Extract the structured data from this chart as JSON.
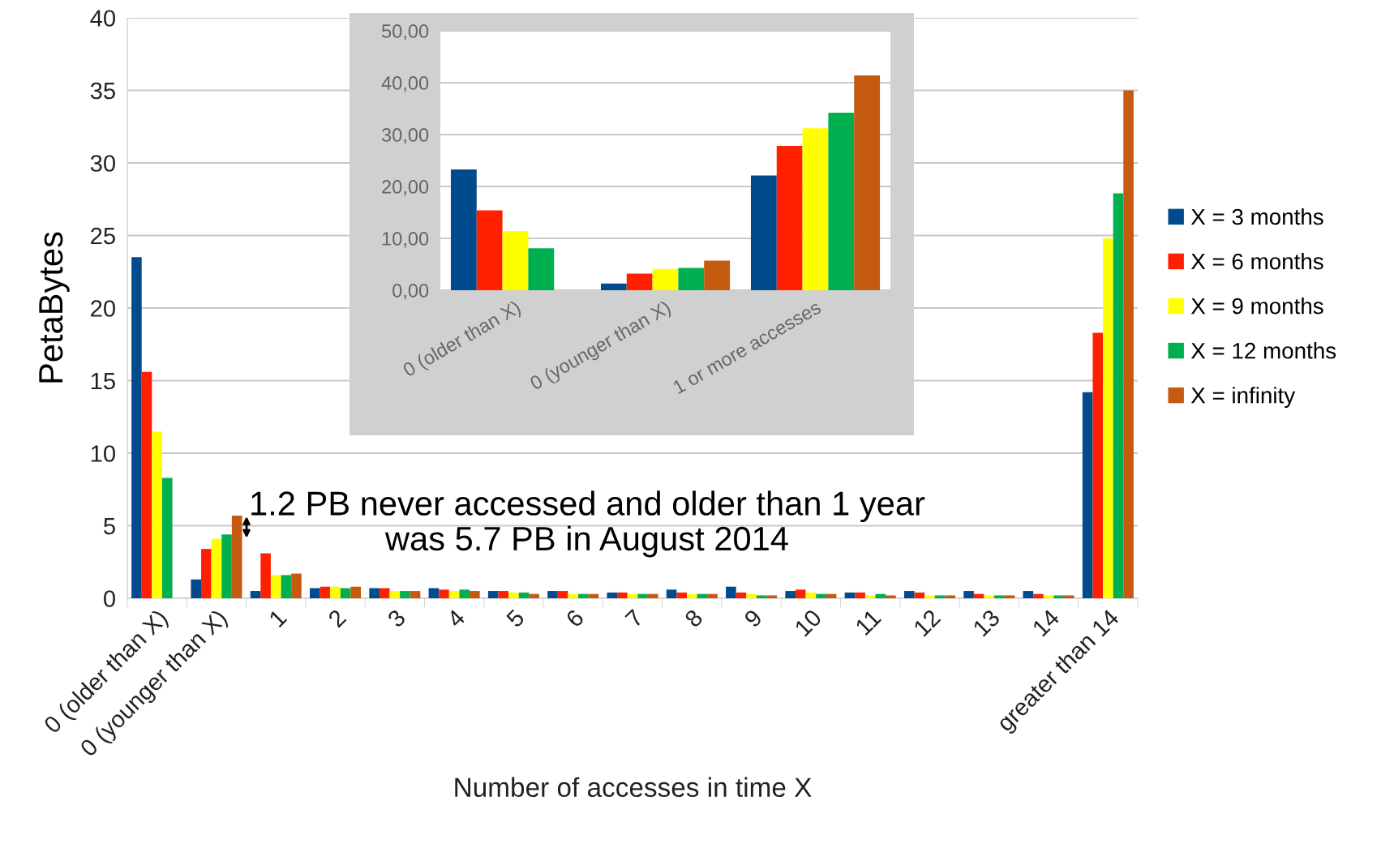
{
  "chart_data": [
    {
      "type": "bar",
      "xlabel": "Number of accesses in time X",
      "ylabel": "PetaBytes",
      "categories": [
        "0 (older than X)",
        "0 (younger than X)",
        "1",
        "2",
        "3",
        "4",
        "5",
        "6",
        "7",
        "8",
        "9",
        "10",
        "11",
        "12",
        "13",
        "14",
        "greater than 14"
      ],
      "series": [
        {
          "name": "X = 3 months",
          "color": "#004b8d",
          "values": [
            23.5,
            1.3,
            0.5,
            0.7,
            0.7,
            0.7,
            0.5,
            0.5,
            0.4,
            0.6,
            0.8,
            0.5,
            0.4,
            0.5,
            0.5,
            0.5,
            14.2
          ]
        },
        {
          "name": "X = 6 months",
          "color": "#ff2000",
          "values": [
            15.6,
            3.4,
            3.1,
            0.8,
            0.7,
            0.6,
            0.5,
            0.5,
            0.4,
            0.4,
            0.4,
            0.6,
            0.4,
            0.4,
            0.3,
            0.3,
            18.3
          ]
        },
        {
          "name": "X = 9 months",
          "color": "#ffff00",
          "values": [
            11.5,
            4.1,
            1.6,
            0.8,
            0.5,
            0.5,
            0.4,
            0.3,
            0.3,
            0.3,
            0.3,
            0.4,
            0.2,
            0.2,
            0.2,
            0.2,
            24.8
          ]
        },
        {
          "name": "X = 12 months",
          "color": "#00b050",
          "values": [
            8.3,
            4.4,
            1.6,
            0.7,
            0.5,
            0.6,
            0.4,
            0.3,
            0.3,
            0.3,
            0.2,
            0.3,
            0.3,
            0.2,
            0.2,
            0.2,
            27.9
          ]
        },
        {
          "name": "X = infinity",
          "color": "#c55a11",
          "values": [
            null,
            5.7,
            1.7,
            0.8,
            0.5,
            0.5,
            0.3,
            0.3,
            0.3,
            0.3,
            0.2,
            0.3,
            0.2,
            0.2,
            0.2,
            0.2,
            35.0
          ]
        }
      ],
      "ylim": [
        0,
        40
      ],
      "yticks": [
        0,
        5,
        10,
        15,
        20,
        25,
        30,
        35,
        40
      ],
      "grid": "y",
      "legend": "right",
      "annotations": [
        "1.2 PB never accessed and older than 1 year\nwas 5.7 PB in August 2014"
      ]
    },
    {
      "type": "bar",
      "categories": [
        "0 (older than X)",
        "0 (younger than X)",
        "1 or more accesses"
      ],
      "series": [
        {
          "color": "#004b8d",
          "values": [
            23.3,
            1.3,
            22.1
          ]
        },
        {
          "color": "#ff2000",
          "values": [
            15.4,
            3.2,
            27.8
          ]
        },
        {
          "color": "#ffff00",
          "values": [
            11.4,
            4.1,
            31.2
          ]
        },
        {
          "color": "#00b050",
          "values": [
            8.1,
            4.3,
            34.2
          ]
        },
        {
          "color": "#c55a11",
          "values": [
            null,
            5.7,
            41.4
          ]
        }
      ],
      "ylim": [
        0,
        50
      ],
      "yticks": [
        {
          "value": 0,
          "label": "0,00"
        },
        {
          "value": 10,
          "label": "10,00"
        },
        {
          "value": 20,
          "label": "20,00"
        },
        {
          "value": 30,
          "label": "30,00"
        },
        {
          "value": 40,
          "label": "40,00"
        },
        {
          "value": 50,
          "label": "50,00"
        }
      ],
      "grid": "y"
    }
  ]
}
